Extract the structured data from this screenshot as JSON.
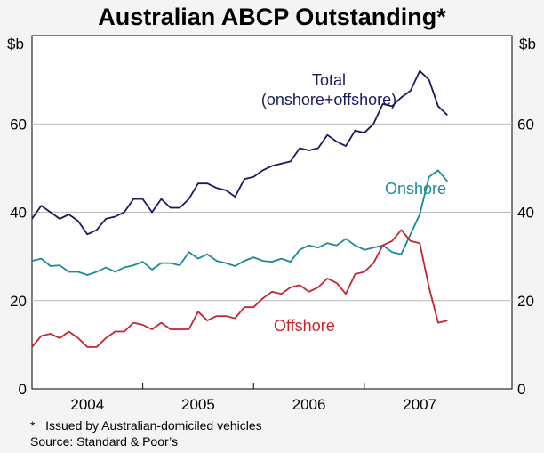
{
  "chart_data": {
    "type": "line",
    "title": "Australian ABCP Outstanding*",
    "ylabel_left": "$b",
    "ylabel_right": "$b",
    "ylim": [
      0,
      80
    ],
    "yticks": [
      0,
      20,
      40,
      60
    ],
    "xlim": [
      2003.5,
      2007.833
    ],
    "xlabels": [
      {
        "label": "2004",
        "at": 2004.0
      },
      {
        "label": "2005",
        "at": 2005.0
      },
      {
        "label": "2006",
        "at": 2006.0
      },
      {
        "label": "2007",
        "at": 2007.0
      }
    ],
    "year_dividers": [
      2004.5,
      2005.5,
      2006.5
    ],
    "x_start": 2003.5,
    "x_step": 0.08333,
    "series": [
      {
        "name": "Total",
        "label_lines": [
          "Total",
          "(onshore+offshore)"
        ],
        "color": "#1a1a5e",
        "values": [
          38.5,
          41.5,
          40.0,
          38.5,
          39.5,
          38.0,
          35.0,
          36.0,
          38.5,
          39.0,
          40.0,
          43.0,
          43.0,
          40.0,
          43.0,
          41.0,
          41.0,
          43.0,
          46.5,
          46.5,
          45.5,
          45.0,
          43.5,
          47.5,
          48.0,
          49.5,
          50.5,
          51.0,
          51.5,
          54.5,
          54.0,
          54.5,
          57.5,
          56.0,
          55.0,
          58.5,
          58.0,
          60.0,
          64.5,
          64.0,
          66.0,
          67.5,
          72.0,
          70.0,
          64.0,
          62.0
        ]
      },
      {
        "name": "Onshore",
        "label_lines": [
          "Onshore"
        ],
        "color": "#1b8a96",
        "values": [
          29.0,
          29.5,
          27.8,
          28.0,
          26.5,
          26.5,
          25.8,
          26.5,
          27.5,
          26.5,
          27.5,
          28.0,
          28.8,
          27.0,
          28.5,
          28.5,
          28.0,
          31.0,
          29.5,
          30.5,
          29.0,
          28.5,
          27.8,
          29.0,
          29.8,
          29.0,
          28.8,
          29.5,
          28.8,
          31.5,
          32.5,
          32.0,
          33.0,
          32.5,
          34.0,
          32.5,
          31.5,
          32.0,
          32.5,
          31.0,
          30.5,
          35.0,
          39.5,
          48.0,
          49.5,
          47.0
        ]
      },
      {
        "name": "Offshore",
        "label_lines": [
          "Offshore"
        ],
        "color": "#c4252f",
        "values": [
          9.5,
          12.0,
          12.5,
          11.5,
          13.0,
          11.5,
          9.5,
          9.5,
          11.5,
          13.0,
          13.0,
          15.0,
          14.5,
          13.5,
          15.0,
          13.5,
          13.5,
          13.5,
          17.5,
          15.5,
          16.5,
          16.5,
          16.0,
          18.5,
          18.5,
          20.5,
          22.0,
          21.5,
          23.0,
          23.5,
          22.0,
          23.0,
          25.0,
          24.0,
          21.5,
          26.0,
          26.5,
          28.5,
          32.5,
          33.5,
          36.0,
          33.5,
          33.0,
          23.0,
          15.0,
          15.5
        ]
      }
    ]
  },
  "footnote": "*   Issued by Australian-domiciled vehicles",
  "source": "Source: Standard & Poor’s"
}
